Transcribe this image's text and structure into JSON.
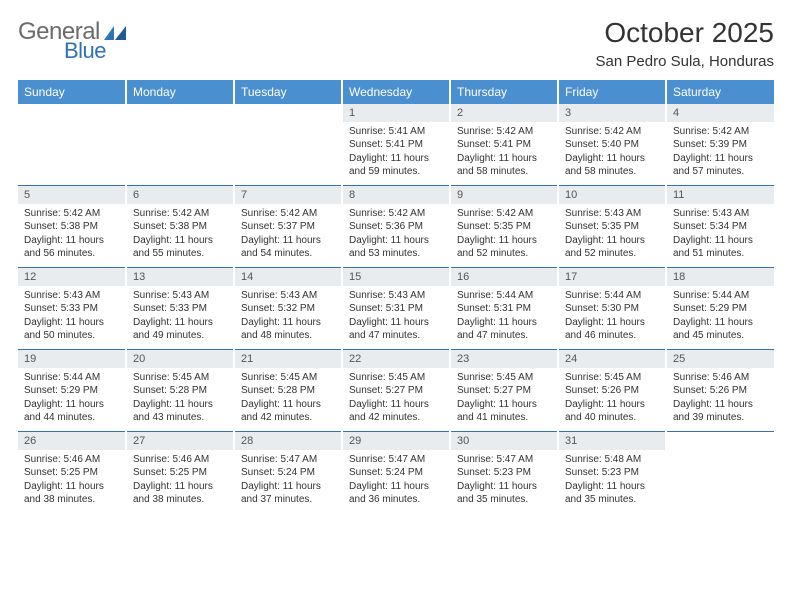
{
  "logo": {
    "general": "General",
    "blue": "Blue"
  },
  "title": "October 2025",
  "location": "San Pedro Sula, Honduras",
  "colors": {
    "header_bg": "#4a8fcf",
    "header_text": "#ffffff",
    "daynum_bg": "#e8ecef",
    "rule": "#2e74b5",
    "logo_gray": "#6b6b6b",
    "logo_blue": "#2e74b5"
  },
  "day_headers": [
    "Sunday",
    "Monday",
    "Tuesday",
    "Wednesday",
    "Thursday",
    "Friday",
    "Saturday"
  ],
  "weeks": [
    [
      null,
      null,
      null,
      {
        "n": "1",
        "sr": "5:41 AM",
        "ss": "5:41 PM",
        "dl": "11 hours and 59 minutes."
      },
      {
        "n": "2",
        "sr": "5:42 AM",
        "ss": "5:41 PM",
        "dl": "11 hours and 58 minutes."
      },
      {
        "n": "3",
        "sr": "5:42 AM",
        "ss": "5:40 PM",
        "dl": "11 hours and 58 minutes."
      },
      {
        "n": "4",
        "sr": "5:42 AM",
        "ss": "5:39 PM",
        "dl": "11 hours and 57 minutes."
      }
    ],
    [
      {
        "n": "5",
        "sr": "5:42 AM",
        "ss": "5:38 PM",
        "dl": "11 hours and 56 minutes."
      },
      {
        "n": "6",
        "sr": "5:42 AM",
        "ss": "5:38 PM",
        "dl": "11 hours and 55 minutes."
      },
      {
        "n": "7",
        "sr": "5:42 AM",
        "ss": "5:37 PM",
        "dl": "11 hours and 54 minutes."
      },
      {
        "n": "8",
        "sr": "5:42 AM",
        "ss": "5:36 PM",
        "dl": "11 hours and 53 minutes."
      },
      {
        "n": "9",
        "sr": "5:42 AM",
        "ss": "5:35 PM",
        "dl": "11 hours and 52 minutes."
      },
      {
        "n": "10",
        "sr": "5:43 AM",
        "ss": "5:35 PM",
        "dl": "11 hours and 52 minutes."
      },
      {
        "n": "11",
        "sr": "5:43 AM",
        "ss": "5:34 PM",
        "dl": "11 hours and 51 minutes."
      }
    ],
    [
      {
        "n": "12",
        "sr": "5:43 AM",
        "ss": "5:33 PM",
        "dl": "11 hours and 50 minutes."
      },
      {
        "n": "13",
        "sr": "5:43 AM",
        "ss": "5:33 PM",
        "dl": "11 hours and 49 minutes."
      },
      {
        "n": "14",
        "sr": "5:43 AM",
        "ss": "5:32 PM",
        "dl": "11 hours and 48 minutes."
      },
      {
        "n": "15",
        "sr": "5:43 AM",
        "ss": "5:31 PM",
        "dl": "11 hours and 47 minutes."
      },
      {
        "n": "16",
        "sr": "5:44 AM",
        "ss": "5:31 PM",
        "dl": "11 hours and 47 minutes."
      },
      {
        "n": "17",
        "sr": "5:44 AM",
        "ss": "5:30 PM",
        "dl": "11 hours and 46 minutes."
      },
      {
        "n": "18",
        "sr": "5:44 AM",
        "ss": "5:29 PM",
        "dl": "11 hours and 45 minutes."
      }
    ],
    [
      {
        "n": "19",
        "sr": "5:44 AM",
        "ss": "5:29 PM",
        "dl": "11 hours and 44 minutes."
      },
      {
        "n": "20",
        "sr": "5:45 AM",
        "ss": "5:28 PM",
        "dl": "11 hours and 43 minutes."
      },
      {
        "n": "21",
        "sr": "5:45 AM",
        "ss": "5:28 PM",
        "dl": "11 hours and 42 minutes."
      },
      {
        "n": "22",
        "sr": "5:45 AM",
        "ss": "5:27 PM",
        "dl": "11 hours and 42 minutes."
      },
      {
        "n": "23",
        "sr": "5:45 AM",
        "ss": "5:27 PM",
        "dl": "11 hours and 41 minutes."
      },
      {
        "n": "24",
        "sr": "5:45 AM",
        "ss": "5:26 PM",
        "dl": "11 hours and 40 minutes."
      },
      {
        "n": "25",
        "sr": "5:46 AM",
        "ss": "5:26 PM",
        "dl": "11 hours and 39 minutes."
      }
    ],
    [
      {
        "n": "26",
        "sr": "5:46 AM",
        "ss": "5:25 PM",
        "dl": "11 hours and 38 minutes."
      },
      {
        "n": "27",
        "sr": "5:46 AM",
        "ss": "5:25 PM",
        "dl": "11 hours and 38 minutes."
      },
      {
        "n": "28",
        "sr": "5:47 AM",
        "ss": "5:24 PM",
        "dl": "11 hours and 37 minutes."
      },
      {
        "n": "29",
        "sr": "5:47 AM",
        "ss": "5:24 PM",
        "dl": "11 hours and 36 minutes."
      },
      {
        "n": "30",
        "sr": "5:47 AM",
        "ss": "5:23 PM",
        "dl": "11 hours and 35 minutes."
      },
      {
        "n": "31",
        "sr": "5:48 AM",
        "ss": "5:23 PM",
        "dl": "11 hours and 35 minutes."
      },
      null
    ]
  ],
  "labels": {
    "sunrise": "Sunrise:",
    "sunset": "Sunset:",
    "daylight": "Daylight:"
  }
}
